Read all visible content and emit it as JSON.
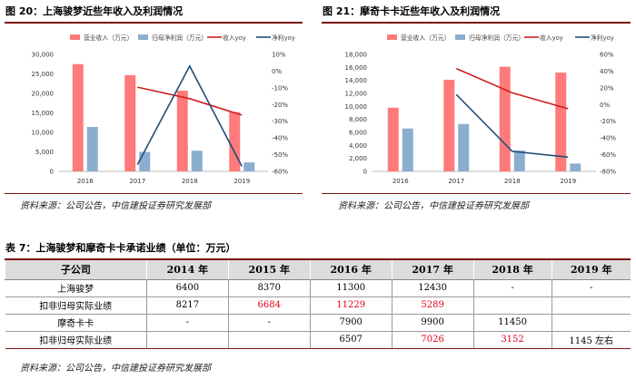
{
  "figures": [
    {
      "title": "图 20：上海骏梦近些年收入及利润情况",
      "source": "资料来源：公司公告，中信建投证券研究发展部",
      "chart_data": {
        "type": "bar",
        "categories": [
          "2016",
          "2017",
          "2018",
          "2019"
        ],
        "series": [
          {
            "name": "营业收入（万元）",
            "kind": "bar",
            "axis": "left",
            "color": "#ff7a7a",
            "values": [
              27500,
              24700,
              20700,
              15200
            ]
          },
          {
            "name": "归母净利润（万元）",
            "kind": "bar",
            "axis": "left",
            "color": "#8aaecf",
            "values": [
              11400,
              5000,
              5300,
              2300
            ]
          },
          {
            "name": "收入yoy",
            "kind": "line",
            "axis": "right",
            "color": "#cc1f1f",
            "values": [
              null,
              -9.6,
              -16.5,
              -26.3
            ]
          },
          {
            "name": "净利yoy",
            "kind": "line",
            "axis": "right",
            "color": "#1f4e79",
            "values": [
              null,
              -56,
              3,
              -57
            ]
          }
        ],
        "ylim_left": [
          0,
          30000
        ],
        "yticks_left": [
          "0",
          "5,000",
          "10,000",
          "15,000",
          "20,000",
          "25,000",
          "30,000"
        ],
        "ylim_right": [
          -60,
          10
        ],
        "yticks_right": [
          "-60%",
          "-50%",
          "-40%",
          "-30%",
          "-20%",
          "-10%",
          "0%",
          "10%"
        ],
        "legend": "top"
      }
    },
    {
      "title": "图 21：摩奇卡卡近些年收入及利润情况",
      "source": "资料来源：公司公告，中信建投证券研究发展部",
      "chart_data": {
        "type": "bar",
        "categories": [
          "2016",
          "2017",
          "2018",
          "2019"
        ],
        "series": [
          {
            "name": "营业收入（万元）",
            "kind": "bar",
            "axis": "left",
            "color": "#ff7a7a",
            "values": [
              9800,
              14100,
              16100,
              15200
            ]
          },
          {
            "name": "归母净利润（万元）",
            "kind": "bar",
            "axis": "left",
            "color": "#8aaecf",
            "values": [
              6600,
              7300,
              3200,
              1200
            ]
          },
          {
            "name": "收入yoy",
            "kind": "line",
            "axis": "right",
            "color": "#cc1f1f",
            "values": [
              null,
              43,
              14,
              -5
            ]
          },
          {
            "name": "净利yoy",
            "kind": "line",
            "axis": "right",
            "color": "#1f4e79",
            "values": [
              null,
              12,
              -56,
              -63
            ]
          }
        ],
        "ylim_left": [
          0,
          18000
        ],
        "yticks_left": [
          "0",
          "2,000",
          "4,000",
          "6,000",
          "8,000",
          "10,000",
          "12,000",
          "14,000",
          "16,000",
          "18,000"
        ],
        "ylim_right": [
          -80,
          60
        ],
        "yticks_right": [
          "-80%",
          "-60%",
          "-40%",
          "-20%",
          "0%",
          "20%",
          "40%",
          "60%"
        ],
        "legend": "top"
      }
    }
  ],
  "table": {
    "title": "表 7：上海骏梦和摩奇卡卡承诺业绩（单位：万元）",
    "headers": [
      "子公司",
      "2014 年",
      "2015 年",
      "2016 年",
      "2017 年",
      "2018 年",
      "2019 年"
    ],
    "rows": [
      {
        "cells": [
          "上海骏梦",
          "6400",
          "8370",
          "11300",
          "12430",
          "-",
          "-"
        ],
        "red": []
      },
      {
        "cells": [
          "扣非归母实际业绩",
          "8217",
          "6684",
          "11229",
          "5289",
          "",
          ""
        ],
        "red": [
          2,
          3,
          4
        ]
      },
      {
        "cells": [
          "摩奇卡卡",
          "-",
          "-",
          "7900",
          "9900",
          "11450",
          ""
        ],
        "red": [],
        "align_right_shift": true
      },
      {
        "cells": [
          "扣非归母实际业绩",
          "",
          "",
          "6507",
          "7026",
          "3152",
          "1145 左右"
        ],
        "red": [
          4,
          5
        ],
        "shift_left": true
      }
    ],
    "source": "资料来源：公司公告，中信建投证券研究发展部"
  }
}
